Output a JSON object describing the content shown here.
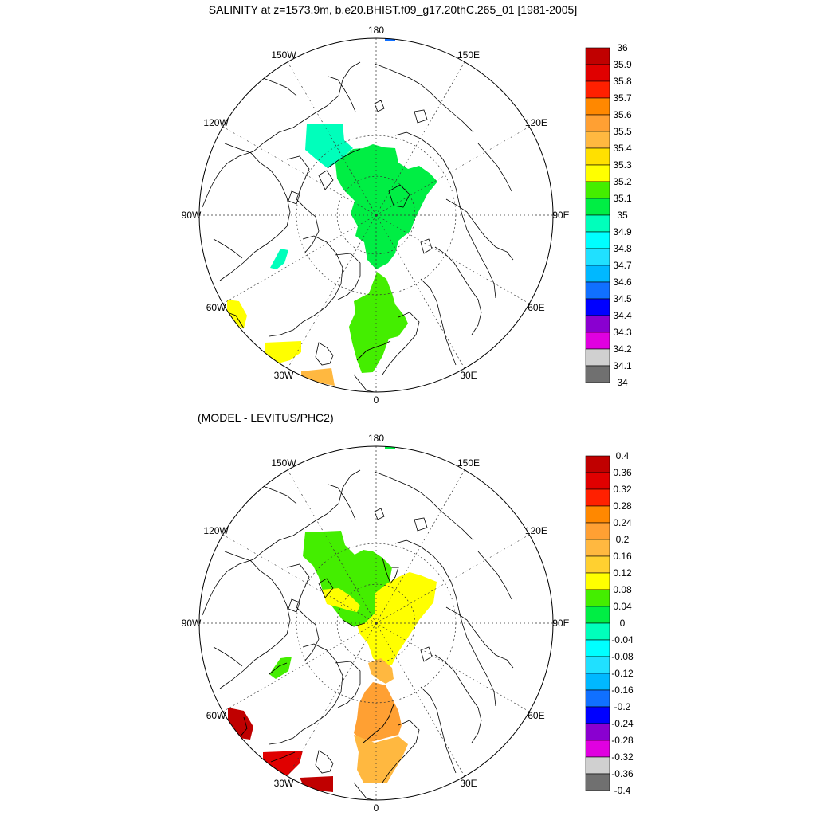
{
  "figure": {
    "title": "SALINITY at z=1573.9m, b.e20.BHIST.f09_g17.20thC.265_01 [1981-2005]",
    "diff_title": "(MODEL - LEVITUS/PHC2)"
  },
  "panels": [
    {
      "id": "salinity",
      "longitude_labels": [
        {
          "lon": 180,
          "text": "180"
        },
        {
          "lon": 150,
          "text": "150E"
        },
        {
          "lon": 120,
          "text": "120E"
        },
        {
          "lon": 90,
          "text": "90E"
        },
        {
          "lon": 60,
          "text": "60E"
        },
        {
          "lon": 30,
          "text": "30E"
        },
        {
          "lon": 0,
          "text": "0"
        },
        {
          "lon": -30,
          "text": "30W"
        },
        {
          "lon": -60,
          "text": "60W"
        },
        {
          "lon": -90,
          "text": "90W"
        },
        {
          "lon": -120,
          "text": "120W"
        },
        {
          "lon": -150,
          "text": "150W"
        }
      ],
      "colorbar": {
        "labels": [
          "36",
          "35.9",
          "35.8",
          "35.7",
          "35.6",
          "35.5",
          "35.4",
          "35.3",
          "35.2",
          "35.1",
          "35",
          "34.9",
          "34.8",
          "34.7",
          "34.6",
          "34.5",
          "34.4",
          "34.3",
          "34.2",
          "34.1",
          "34"
        ],
        "colors": [
          "#c00000",
          "#e00000",
          "#ff2000",
          "#ff8800",
          "#ffa033",
          "#ffb840",
          "#ffe000",
          "#ffff00",
          "#44ee00",
          "#00ee44",
          "#00ffbb",
          "#00ffff",
          "#20e0ff",
          "#00b8ff",
          "#1070ff",
          "#0000ff",
          "#8a00d0",
          "#e000e0",
          "#d0d0d0",
          "#707070"
        ]
      }
    },
    {
      "id": "difference",
      "longitude_labels": [
        {
          "lon": 180,
          "text": "180"
        },
        {
          "lon": 150,
          "text": "150E"
        },
        {
          "lon": 120,
          "text": "120E"
        },
        {
          "lon": 90,
          "text": "90E"
        },
        {
          "lon": 60,
          "text": "60E"
        },
        {
          "lon": 30,
          "text": "30E"
        },
        {
          "lon": 0,
          "text": "0"
        },
        {
          "lon": -30,
          "text": "30W"
        },
        {
          "lon": -60,
          "text": "60W"
        },
        {
          "lon": -90,
          "text": "90W"
        },
        {
          "lon": -120,
          "text": "120W"
        },
        {
          "lon": -150,
          "text": "150W"
        }
      ],
      "colorbar": {
        "labels": [
          "0.4",
          "0.36",
          "0.32",
          "0.28",
          "0.24",
          "0.2",
          "0.16",
          "0.12",
          "0.08",
          "0.04",
          "0",
          "-0.04",
          "-0.08",
          "-0.12",
          "-0.16",
          "-0.2",
          "-0.24",
          "-0.28",
          "-0.32",
          "-0.36",
          "-0.4"
        ],
        "colors": [
          "#c00000",
          "#e00000",
          "#ff2000",
          "#ff8800",
          "#ffa033",
          "#ffb840",
          "#ffd030",
          "#ffff00",
          "#44ee00",
          "#00ee44",
          "#00ffbb",
          "#00ffff",
          "#20e0ff",
          "#00b8ff",
          "#1070ff",
          "#0000ff",
          "#8a00d0",
          "#e000e0",
          "#d0d0d0",
          "#707070"
        ]
      }
    }
  ]
}
